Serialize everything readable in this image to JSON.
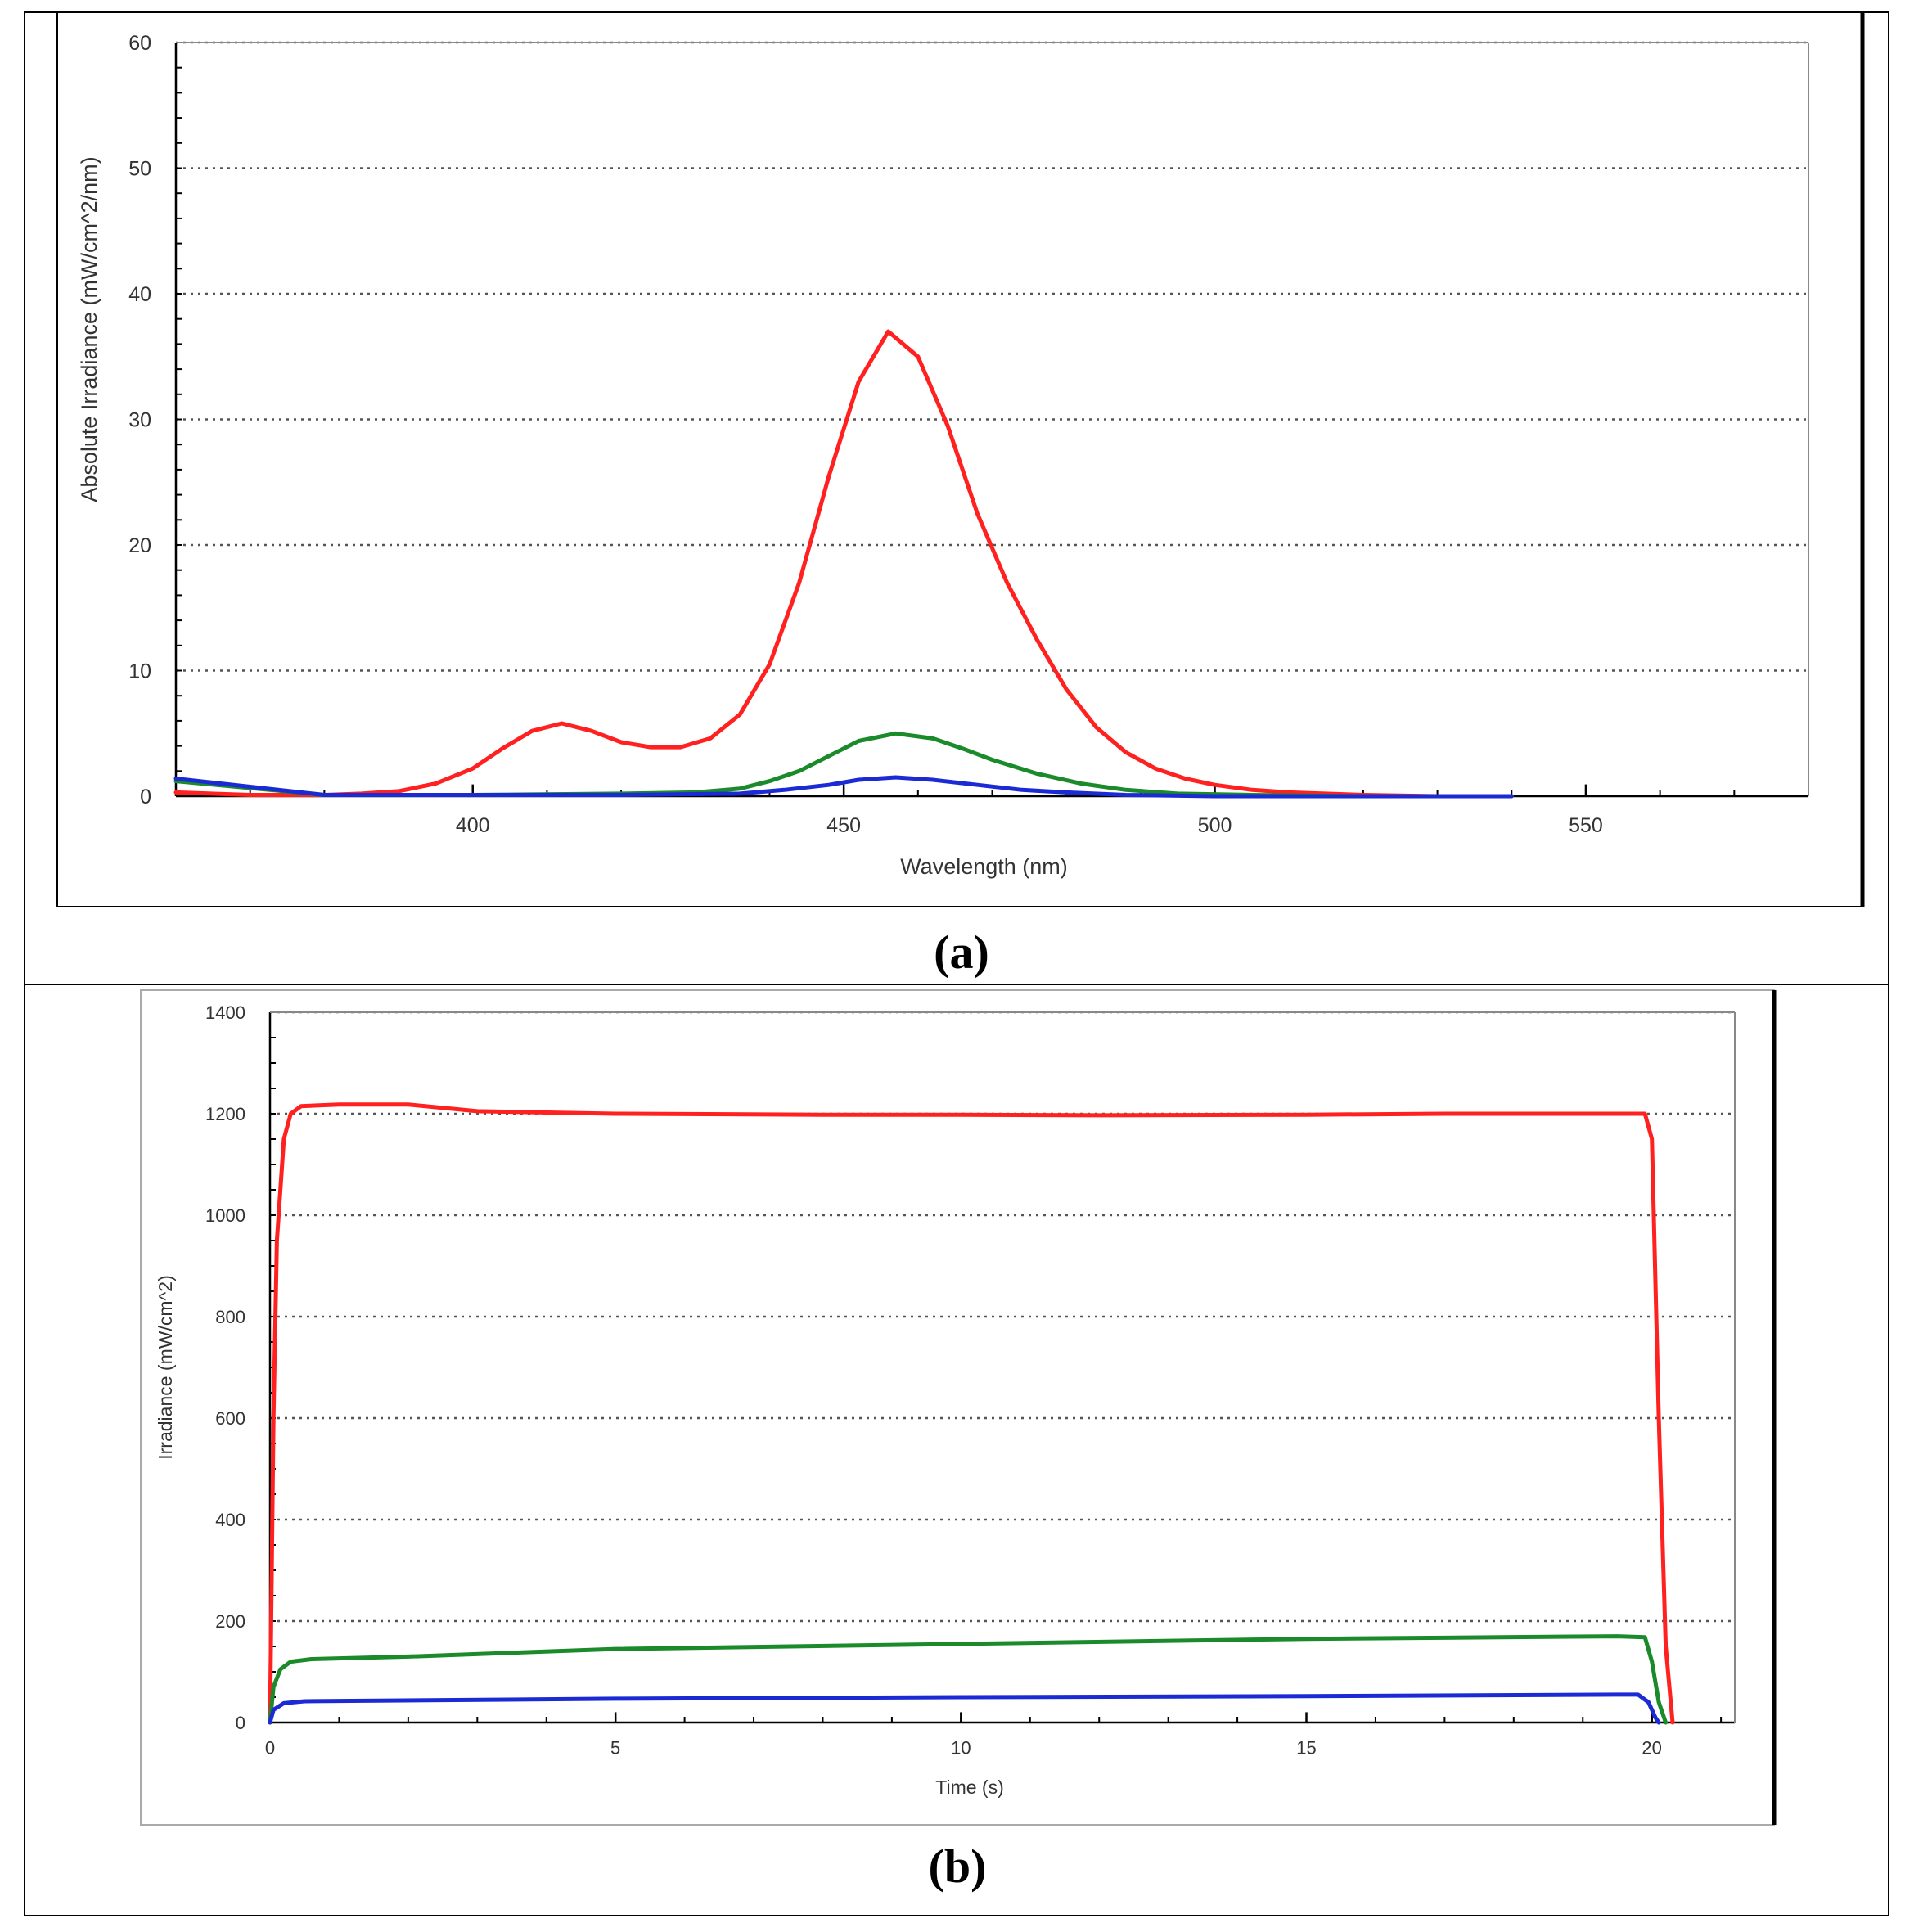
{
  "panel_labels": {
    "a": "(a)",
    "b": "(b)"
  },
  "colors": {
    "red": "#ff2020",
    "green": "#1a8a2a",
    "blue": "#1a2bd6",
    "grid": "#555555",
    "axis": "#000000"
  },
  "chart_data": [
    {
      "type": "line",
      "panel": "(a)",
      "xlabel": "Wavelength (nm)",
      "ylabel": "Absolute Irradiance (mW/cm^2/nm)",
      "xlim": [
        360,
        580
      ],
      "ylim": [
        0,
        60
      ],
      "xticks": [
        400,
        450,
        500,
        550
      ],
      "yticks": [
        0,
        10,
        20,
        30,
        40,
        50,
        60
      ],
      "grid": true,
      "series": [
        {
          "color": "#ff2020",
          "x": [
            360,
            370,
            380,
            385,
            390,
            395,
            400,
            404,
            408,
            412,
            416,
            420,
            424,
            428,
            432,
            436,
            440,
            444,
            448,
            452,
            456,
            460,
            464,
            468,
            472,
            476,
            480,
            484,
            488,
            492,
            496,
            500,
            505,
            510,
            520,
            530,
            540
          ],
          "y": [
            0.3,
            0.1,
            0.1,
            0.2,
            0.4,
            1.0,
            2.2,
            3.8,
            5.2,
            5.8,
            5.2,
            4.3,
            3.9,
            3.9,
            4.6,
            6.5,
            10.5,
            17.0,
            25.5,
            33.0,
            37.0,
            35.0,
            29.5,
            22.5,
            17.0,
            12.5,
            8.5,
            5.5,
            3.5,
            2.2,
            1.4,
            0.9,
            0.5,
            0.3,
            0.1,
            0.0,
            0.0
          ]
        },
        {
          "color": "#1a8a2a",
          "x": [
            360,
            380,
            400,
            420,
            430,
            436,
            440,
            444,
            448,
            452,
            457,
            462,
            466,
            470,
            476,
            482,
            488,
            495,
            505,
            520,
            540
          ],
          "y": [
            1.2,
            0.1,
            0.1,
            0.2,
            0.3,
            0.6,
            1.2,
            2.0,
            3.2,
            4.4,
            5.0,
            4.6,
            3.8,
            2.9,
            1.8,
            1.0,
            0.5,
            0.2,
            0.1,
            0.0,
            0.0
          ]
        },
        {
          "color": "#1a2bd6",
          "x": [
            360,
            380,
            420,
            436,
            442,
            448,
            452,
            457,
            462,
            468,
            474,
            480,
            488,
            500,
            540
          ],
          "y": [
            1.4,
            0.1,
            0.1,
            0.2,
            0.5,
            0.9,
            1.3,
            1.5,
            1.3,
            0.9,
            0.5,
            0.3,
            0.1,
            0.0,
            0.0
          ]
        }
      ]
    },
    {
      "type": "line",
      "panel": "(b)",
      "xlabel": "Time (s)",
      "ylabel": "Irradiance (mW/cm^2)",
      "xlim": [
        0,
        21.2
      ],
      "ylim": [
        0,
        1400
      ],
      "xticks": [
        0,
        5,
        10,
        15,
        20
      ],
      "yticks": [
        0,
        200,
        400,
        600,
        800,
        1000,
        1200,
        1400
      ],
      "grid": true,
      "series": [
        {
          "color": "#ff2020",
          "x": [
            0,
            0.05,
            0.1,
            0.2,
            0.3,
            0.45,
            1.0,
            2.0,
            3.0,
            5.0,
            8.0,
            10.0,
            12.0,
            15.0,
            17.0,
            19.0,
            19.9,
            20.0,
            20.1,
            20.2,
            20.3
          ],
          "y": [
            0,
            600,
            950,
            1150,
            1200,
            1215,
            1218,
            1218,
            1205,
            1200,
            1198,
            1198,
            1197,
            1198,
            1200,
            1200,
            1200,
            1150,
            600,
            150,
            0
          ]
        },
        {
          "color": "#1a8a2a",
          "x": [
            0,
            0.05,
            0.15,
            0.3,
            0.6,
            2.0,
            5.0,
            10.0,
            15.0,
            19.5,
            19.9,
            20.0,
            20.1,
            20.2
          ],
          "y": [
            0,
            70,
            105,
            120,
            125,
            130,
            145,
            155,
            165,
            170,
            168,
            120,
            40,
            0
          ]
        },
        {
          "color": "#1a2bd6",
          "x": [
            0,
            0.05,
            0.2,
            0.5,
            5.0,
            10.0,
            15.0,
            19.5,
            19.8,
            19.95,
            20.05,
            20.1
          ],
          "y": [
            0,
            25,
            38,
            42,
            47,
            50,
            52,
            55,
            55,
            40,
            10,
            0
          ]
        }
      ]
    }
  ]
}
